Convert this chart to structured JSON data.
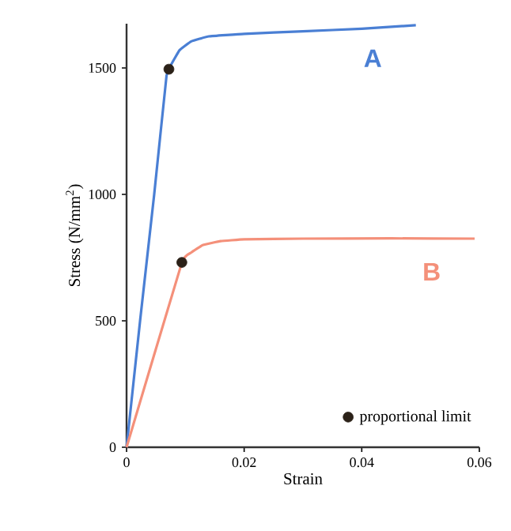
{
  "chart_data": {
    "type": "line",
    "xlabel": "Strain",
    "ylabel": "Stress (N/mm$^{2}$)",
    "xlim": [
      0,
      0.06
    ],
    "ylim": [
      0,
      1675
    ],
    "xticks": [
      0,
      0.02,
      0.04,
      0.06
    ],
    "yticks": [
      0,
      500,
      1000,
      1500
    ],
    "grid": false,
    "legend": "bottom right",
    "marker": "none",
    "line_style": "solid",
    "series": [
      {
        "name": "A",
        "color": "#4a7fd4",
        "x": [
          0,
          0.0023,
          0.0047,
          0.0068,
          0.0075,
          0.009,
          0.011,
          0.014,
          0.02,
          0.03,
          0.04,
          0.0492
        ],
        "values": [
          0,
          500,
          1000,
          1470,
          1510,
          1570,
          1605,
          1625,
          1635,
          1645,
          1655,
          1669
        ]
      },
      {
        "name": "B",
        "color": "#f4907a",
        "x": [
          0,
          0.0094,
          0.011,
          0.013,
          0.016,
          0.02,
          0.03,
          0.045,
          0.0592
        ],
        "values": [
          0,
          730,
          770,
          800,
          815,
          822,
          825,
          826,
          825
        ]
      },
      {
        "name": "proportional limit",
        "type": "scatter",
        "marker": "circle",
        "color": "#2b2118",
        "x": [
          0.0072,
          0.0094
        ],
        "values": [
          1495,
          731
        ]
      }
    ]
  }
}
